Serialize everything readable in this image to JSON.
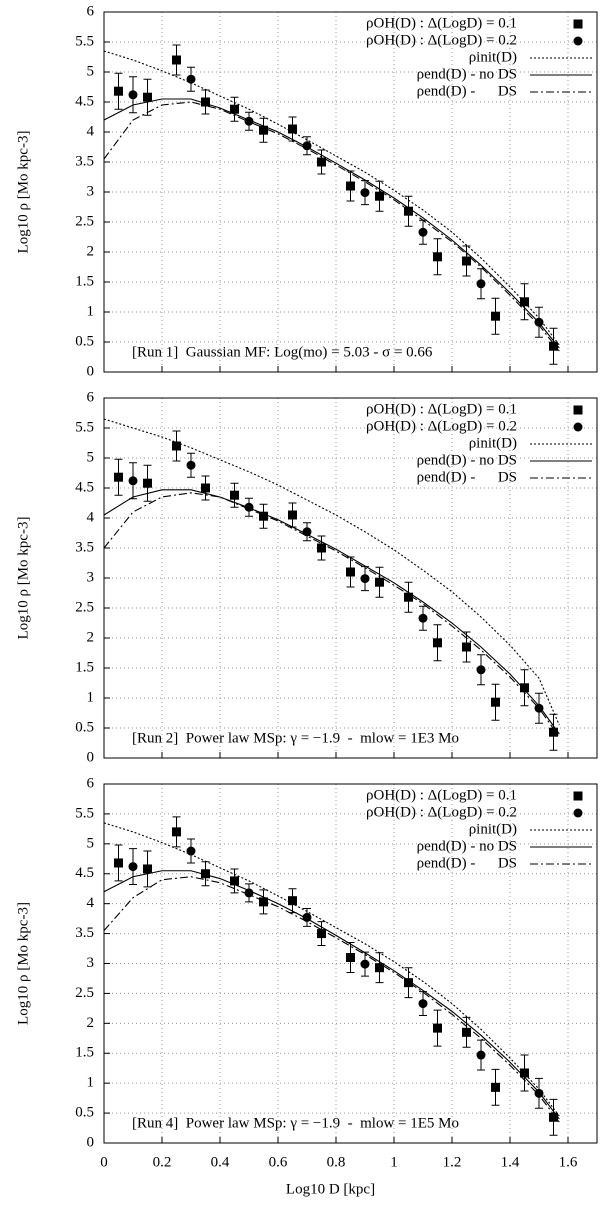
{
  "chart_data": [
    {
      "type": "line",
      "annotation": "[Run 1]  Gaussian MF: Log(mo) = 5.03 - σ = 0.66",
      "ylabel": "Log10 ρ [Mo kpc-3]",
      "xlim": [
        0,
        1.7
      ],
      "ylim": [
        0,
        6
      ],
      "xticks": [
        0,
        0.2,
        0.4,
        0.6,
        0.8,
        1,
        1.2,
        1.4,
        1.6
      ],
      "yticks": [
        0,
        0.5,
        1,
        1.5,
        2,
        2.5,
        3,
        3.5,
        4,
        4.5,
        5,
        5.5,
        6
      ],
      "grid": true,
      "series": [
        {
          "name": "ρOH(D) : Δ(LogD) = 0.1",
          "marker": "square",
          "color": "#000",
          "x": [
            0.05,
            0.15,
            0.25,
            0.35,
            0.45,
            0.55,
            0.65,
            0.75,
            0.85,
            0.95,
            1.05,
            1.15,
            1.25,
            1.35,
            1.45,
            1.55
          ],
          "values": [
            4.68,
            4.58,
            5.2,
            4.5,
            4.38,
            4.03,
            4.05,
            3.5,
            3.1,
            2.93,
            2.68,
            1.92,
            1.85,
            0.93,
            1.17,
            0.43
          ],
          "errors": [
            0.3,
            0.3,
            0.25,
            0.2,
            0.2,
            0.2,
            0.2,
            0.2,
            0.25,
            0.25,
            0.25,
            0.3,
            0.25,
            0.3,
            0.3,
            0.3
          ]
        },
        {
          "name": "ρOH(D) : Δ(LogD) = 0.2",
          "marker": "circle",
          "color": "#000",
          "x": [
            0.1,
            0.3,
            0.5,
            0.7,
            0.9,
            1.1,
            1.3,
            1.5
          ],
          "values": [
            4.62,
            4.88,
            4.18,
            3.77,
            2.99,
            2.33,
            1.47,
            0.83
          ],
          "errors": [
            0.3,
            0.2,
            0.15,
            0.15,
            0.2,
            0.2,
            0.25,
            0.25
          ]
        },
        {
          "name": "ρinit(D)",
          "style": "dotted",
          "color": "#000",
          "x": [
            0,
            0.1,
            0.2,
            0.3,
            0.4,
            0.5,
            0.6,
            0.7,
            0.8,
            0.9,
            1,
            1.1,
            1.2,
            1.3,
            1.4,
            1.5,
            1.57
          ],
          "values": [
            5.35,
            5.2,
            5.02,
            4.82,
            4.6,
            4.38,
            4.13,
            3.87,
            3.6,
            3.33,
            3.03,
            2.7,
            2.33,
            1.9,
            1.42,
            0.9,
            0.45
          ]
        },
        {
          "name": "ρend(D) - no DS",
          "style": "solid",
          "color": "#000",
          "x": [
            0,
            0.1,
            0.2,
            0.3,
            0.4,
            0.5,
            0.6,
            0.7,
            0.8,
            0.9,
            1,
            1.1,
            1.2,
            1.3,
            1.4,
            1.5,
            1.57
          ],
          "values": [
            4.2,
            4.45,
            4.55,
            4.55,
            4.4,
            4.2,
            4,
            3.75,
            3.48,
            3.2,
            2.9,
            2.57,
            2.2,
            1.78,
            1.32,
            0.82,
            0.4
          ]
        },
        {
          "name": "ρend(D) -      DS",
          "style": "dashdot",
          "color": "#000",
          "x": [
            0,
            0.1,
            0.2,
            0.3,
            0.4,
            0.5,
            0.6,
            0.7,
            0.8,
            0.9,
            1,
            1.1,
            1.2,
            1.3,
            1.4,
            1.5,
            1.57
          ],
          "values": [
            3.55,
            4.2,
            4.45,
            4.5,
            4.38,
            4.17,
            3.97,
            3.72,
            3.45,
            3.17,
            2.87,
            2.53,
            2.17,
            1.75,
            1.28,
            0.78,
            0.35
          ]
        }
      ]
    },
    {
      "type": "line",
      "annotation": "[Run 2]  Power law MSp: γ = −1.9  -  mlow = 1E3 Mo",
      "ylabel": "Log10 ρ [Mo kpc-3]",
      "xlim": [
        0,
        1.7
      ],
      "ylim": [
        0,
        6
      ],
      "xticks": [
        0,
        0.2,
        0.4,
        0.6,
        0.8,
        1,
        1.2,
        1.4,
        1.6
      ],
      "yticks": [
        0,
        0.5,
        1,
        1.5,
        2,
        2.5,
        3,
        3.5,
        4,
        4.5,
        5,
        5.5,
        6
      ],
      "grid": true,
      "series": [
        {
          "name": "ρOH(D) : Δ(LogD) = 0.1",
          "marker": "square",
          "color": "#000",
          "x": [
            0.05,
            0.15,
            0.25,
            0.35,
            0.45,
            0.55,
            0.65,
            0.75,
            0.85,
            0.95,
            1.05,
            1.15,
            1.25,
            1.35,
            1.45,
            1.55
          ],
          "values": [
            4.68,
            4.58,
            5.2,
            4.5,
            4.38,
            4.03,
            4.05,
            3.5,
            3.1,
            2.93,
            2.68,
            1.92,
            1.85,
            0.93,
            1.17,
            0.43
          ],
          "errors": [
            0.3,
            0.3,
            0.25,
            0.2,
            0.2,
            0.2,
            0.2,
            0.2,
            0.25,
            0.25,
            0.25,
            0.3,
            0.25,
            0.3,
            0.3,
            0.3
          ]
        },
        {
          "name": "ρOH(D) : Δ(LogD) = 0.2",
          "marker": "circle",
          "color": "#000",
          "x": [
            0.1,
            0.3,
            0.5,
            0.7,
            0.9,
            1.1,
            1.3,
            1.5
          ],
          "values": [
            4.62,
            4.88,
            4.18,
            3.77,
            2.99,
            2.33,
            1.47,
            0.83
          ],
          "errors": [
            0.3,
            0.2,
            0.15,
            0.15,
            0.2,
            0.2,
            0.25,
            0.25
          ]
        },
        {
          "name": "ρinit(D)",
          "style": "dotted",
          "color": "#000",
          "x": [
            0,
            0.1,
            0.2,
            0.3,
            0.4,
            0.5,
            0.6,
            0.7,
            0.8,
            0.9,
            1,
            1.1,
            1.2,
            1.3,
            1.4,
            1.5,
            1.57
          ],
          "values": [
            5.65,
            5.5,
            5.35,
            5.17,
            4.97,
            4.77,
            4.55,
            4.3,
            4.05,
            3.77,
            3.47,
            3.13,
            2.77,
            2.35,
            1.88,
            1.33,
            0.55
          ]
        },
        {
          "name": "ρend(D) - no DS",
          "style": "solid",
          "color": "#000",
          "x": [
            0,
            0.1,
            0.2,
            0.3,
            0.4,
            0.5,
            0.6,
            0.7,
            0.8,
            0.9,
            1,
            1.1,
            1.2,
            1.3,
            1.4,
            1.5,
            1.57
          ],
          "values": [
            4.05,
            4.35,
            4.47,
            4.47,
            4.35,
            4.17,
            3.97,
            3.73,
            3.48,
            3.2,
            2.92,
            2.6,
            2.25,
            1.85,
            1.4,
            0.87,
            0.4
          ]
        },
        {
          "name": "ρend(D) -      DS",
          "style": "dashdot",
          "color": "#000",
          "x": [
            0,
            0.1,
            0.2,
            0.3,
            0.4,
            0.5,
            0.6,
            0.7,
            0.8,
            0.9,
            1,
            1.1,
            1.2,
            1.3,
            1.4,
            1.5,
            1.57
          ],
          "values": [
            3.5,
            4.1,
            4.35,
            4.42,
            4.35,
            4.15,
            3.95,
            3.7,
            3.45,
            3.17,
            2.88,
            2.57,
            2.2,
            1.8,
            1.35,
            0.83,
            0.35
          ]
        }
      ]
    },
    {
      "type": "line",
      "annotation": "[Run 4]  Power law MSp: γ = −1.9  -  mlow = 1E5 Mo",
      "ylabel": "Log10 ρ [Mo kpc-3]",
      "xlabel": "Log10 D [kpc]",
      "xlim": [
        0,
        1.7
      ],
      "ylim": [
        0,
        6
      ],
      "xticks": [
        0,
        0.2,
        0.4,
        0.6,
        0.8,
        1,
        1.2,
        1.4,
        1.6
      ],
      "yticks": [
        0,
        0.5,
        1,
        1.5,
        2,
        2.5,
        3,
        3.5,
        4,
        4.5,
        5,
        5.5,
        6
      ],
      "grid": true,
      "series": [
        {
          "name": "ρOH(D) : Δ(LogD) = 0.1",
          "marker": "square",
          "color": "#000",
          "x": [
            0.05,
            0.15,
            0.25,
            0.35,
            0.45,
            0.55,
            0.65,
            0.75,
            0.85,
            0.95,
            1.05,
            1.15,
            1.25,
            1.35,
            1.45,
            1.55
          ],
          "values": [
            4.68,
            4.58,
            5.2,
            4.5,
            4.38,
            4.03,
            4.05,
            3.5,
            3.1,
            2.93,
            2.68,
            1.92,
            1.85,
            0.93,
            1.17,
            0.43
          ],
          "errors": [
            0.3,
            0.3,
            0.25,
            0.2,
            0.2,
            0.2,
            0.2,
            0.2,
            0.25,
            0.25,
            0.25,
            0.3,
            0.25,
            0.3,
            0.3,
            0.3
          ]
        },
        {
          "name": "ρOH(D) : Δ(LogD) = 0.2",
          "marker": "circle",
          "color": "#000",
          "x": [
            0.1,
            0.3,
            0.5,
            0.7,
            0.9,
            1.1,
            1.3,
            1.5
          ],
          "values": [
            4.62,
            4.88,
            4.18,
            3.77,
            2.99,
            2.33,
            1.47,
            0.83
          ],
          "errors": [
            0.3,
            0.2,
            0.15,
            0.15,
            0.2,
            0.2,
            0.25,
            0.25
          ]
        },
        {
          "name": "ρinit(D)",
          "style": "dotted",
          "color": "#000",
          "x": [
            0,
            0.1,
            0.2,
            0.3,
            0.4,
            0.5,
            0.6,
            0.7,
            0.8,
            0.9,
            1,
            1.1,
            1.2,
            1.3,
            1.4,
            1.5,
            1.57
          ],
          "values": [
            5.35,
            5.2,
            5.02,
            4.82,
            4.6,
            4.38,
            4.13,
            3.87,
            3.6,
            3.33,
            3.03,
            2.7,
            2.33,
            1.9,
            1.42,
            0.9,
            0.45
          ]
        },
        {
          "name": "ρend(D) - no DS",
          "style": "solid",
          "color": "#000",
          "x": [
            0,
            0.1,
            0.2,
            0.3,
            0.4,
            0.5,
            0.6,
            0.7,
            0.8,
            0.9,
            1,
            1.1,
            1.2,
            1.3,
            1.4,
            1.5,
            1.57
          ],
          "values": [
            4.2,
            4.45,
            4.55,
            4.55,
            4.42,
            4.22,
            4,
            3.75,
            3.47,
            3.18,
            2.88,
            2.55,
            2.2,
            1.8,
            1.35,
            0.85,
            0.4
          ]
        },
        {
          "name": "ρend(D) -      DS",
          "style": "dashdot",
          "color": "#000",
          "x": [
            0,
            0.1,
            0.2,
            0.3,
            0.4,
            0.5,
            0.6,
            0.7,
            0.8,
            0.9,
            1,
            1.1,
            1.2,
            1.3,
            1.4,
            1.5,
            1.57
          ],
          "values": [
            3.55,
            4.1,
            4.4,
            4.45,
            4.35,
            4.15,
            3.95,
            3.7,
            3.43,
            3.15,
            2.85,
            2.52,
            2.15,
            1.75,
            1.3,
            0.8,
            0.35
          ]
        }
      ]
    }
  ]
}
